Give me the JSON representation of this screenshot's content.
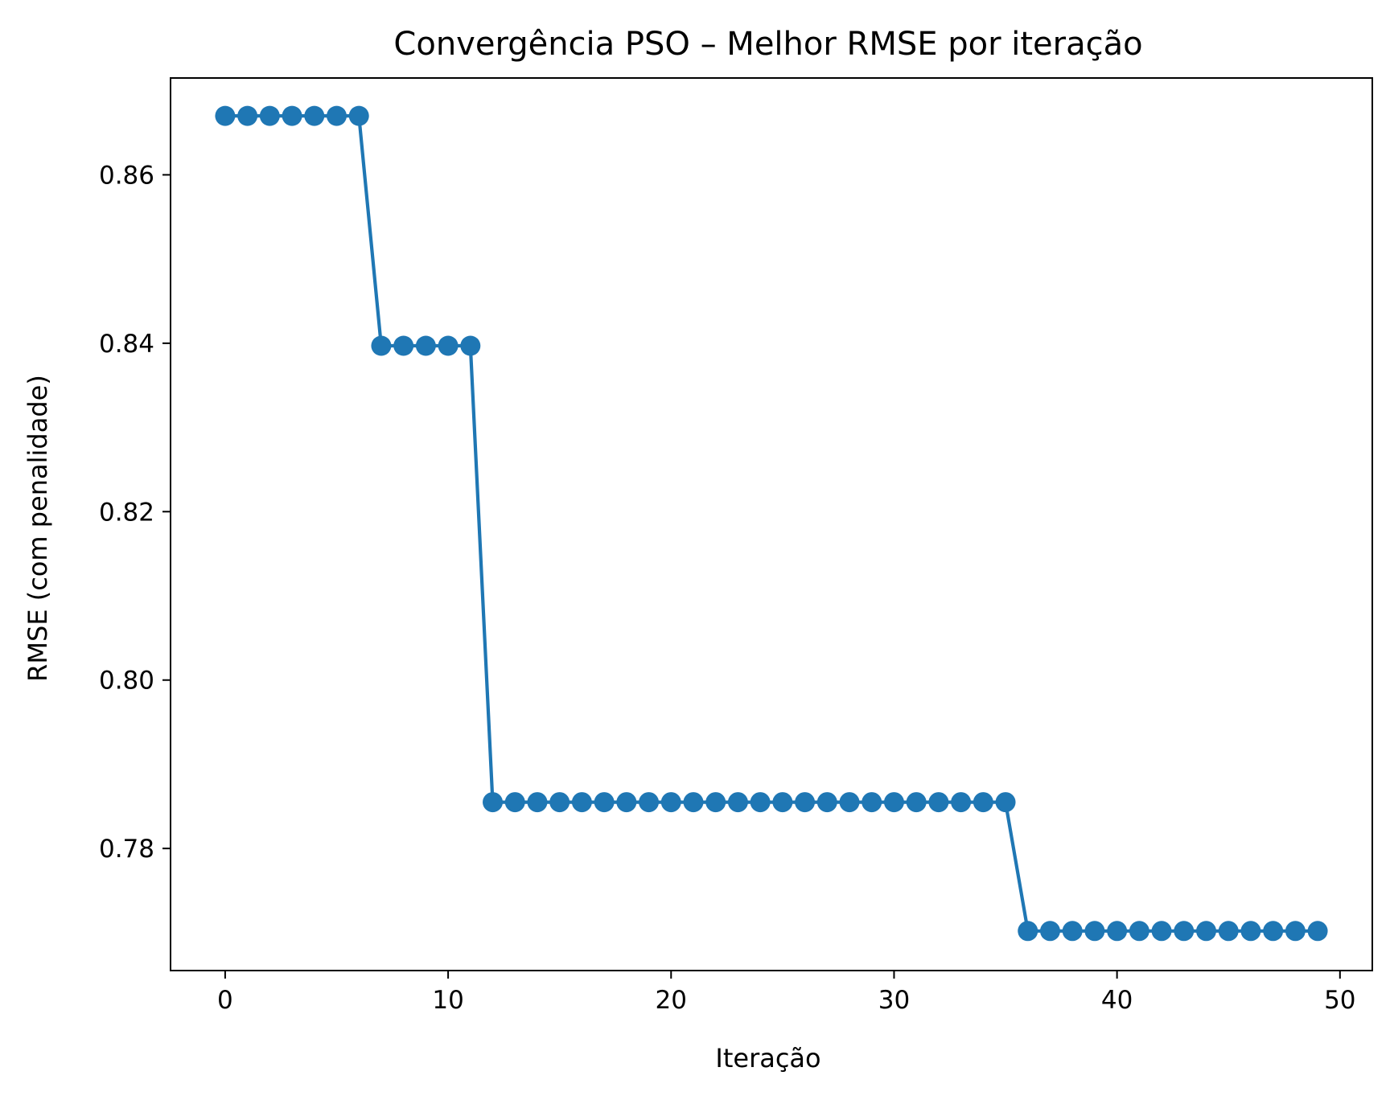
{
  "chart_data": {
    "type": "line",
    "title": "Convergência PSO – Melhor RMSE por iteração",
    "xlabel": "Iteração",
    "ylabel": "RMSE (com penalidade)",
    "xlim": [
      -2.45,
      51.45
    ],
    "ylim": [
      0.7655,
      0.8715
    ],
    "xticks": [
      0,
      10,
      20,
      30,
      40,
      50
    ],
    "xtick_labels": [
      "0",
      "10",
      "20",
      "30",
      "40",
      "50"
    ],
    "yticks": [
      0.78,
      0.8,
      0.82,
      0.84,
      0.86
    ],
    "ytick_labels": [
      "0.78",
      "0.80",
      "0.82",
      "0.84",
      "0.86"
    ],
    "grid": false,
    "legend": null,
    "marker": "circle",
    "series_color": "#1f77b4",
    "x": [
      0,
      1,
      2,
      3,
      4,
      5,
      6,
      7,
      8,
      9,
      10,
      11,
      12,
      13,
      14,
      15,
      16,
      17,
      18,
      19,
      20,
      21,
      22,
      23,
      24,
      25,
      26,
      27,
      28,
      29,
      30,
      31,
      32,
      33,
      34,
      35,
      36,
      37,
      38,
      39,
      40,
      41,
      42,
      43,
      44,
      45,
      46,
      47,
      48,
      49
    ],
    "values": [
      0.867,
      0.867,
      0.867,
      0.867,
      0.867,
      0.867,
      0.867,
      0.8397,
      0.8397,
      0.8397,
      0.8397,
      0.8397,
      0.7855,
      0.7855,
      0.7855,
      0.7855,
      0.7855,
      0.7855,
      0.7855,
      0.7855,
      0.7855,
      0.7855,
      0.7855,
      0.7855,
      0.7855,
      0.7855,
      0.7855,
      0.7855,
      0.7855,
      0.7855,
      0.7855,
      0.7855,
      0.7855,
      0.7855,
      0.7855,
      0.7855,
      0.7702,
      0.7702,
      0.7702,
      0.7702,
      0.7702,
      0.7702,
      0.7702,
      0.7702,
      0.7702,
      0.7702,
      0.7702,
      0.7702,
      0.7702,
      0.7702
    ]
  }
}
